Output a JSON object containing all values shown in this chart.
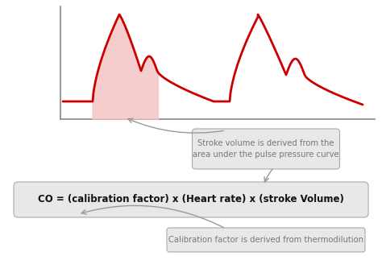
{
  "background_color": "#ffffff",
  "curve_color": "#cc0000",
  "fill_color": "#f5c5c5",
  "axis_color": "#888888",
  "box1_text": "Stroke volume is derived from the\narea under the pulse pressure curve",
  "box2_text": "CO = (calibration factor) x (Heart rate) x (stroke Volume)",
  "box3_text": "Calibration factor is derived from thermodilution",
  "box_bg": "#e8e8e8",
  "box_edge": "#aaaaaa",
  "text_color": "#777777",
  "formula_color": "#111111",
  "arrow_color": "#999999"
}
